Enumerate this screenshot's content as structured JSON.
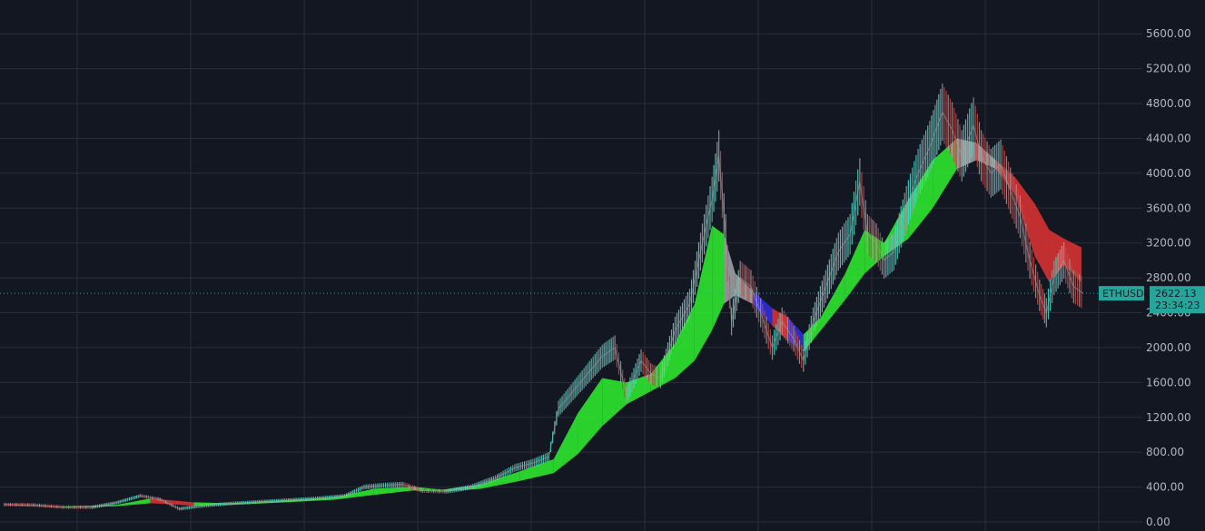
{
  "chart_data": {
    "type": "area",
    "symbol_label": "ETHUSD",
    "last_price_label": "2622.13",
    "countdown_label": "23:34:23",
    "last_price": 2622.13,
    "ylim": [
      0,
      5800
    ],
    "y_ticks": [
      0,
      400,
      800,
      1200,
      1600,
      2000,
      2400,
      2800,
      3200,
      3600,
      4000,
      4400,
      4800,
      5200,
      5600
    ],
    "y_tick_labels": [
      "0.00",
      "400.00",
      "800.00",
      "1200.00",
      "1600.00",
      "2000.00",
      "2400.00",
      "2800.00",
      "3200.00",
      "3600.00",
      "4000.00",
      "4400.00",
      "4800.00",
      "5200.00",
      "5600.00"
    ],
    "grid": true,
    "colors": {
      "background": "#131722",
      "grid": "#2a2e39",
      "bull_band": "#2ee62e",
      "bear_band": "#d63232",
      "weak_bear_band": "#2e2ee0",
      "price_up": "#40e0d0",
      "price_neutral": "#9e9e9e",
      "price_down": "#c24a4a",
      "price_line": "#26a69a"
    },
    "price_series": [
      {
        "x": 0,
        "y": 200
      },
      {
        "x": 30,
        "y": 195
      },
      {
        "x": 60,
        "y": 170
      },
      {
        "x": 90,
        "y": 168
      },
      {
        "x": 115,
        "y": 220
      },
      {
        "x": 140,
        "y": 300
      },
      {
        "x": 160,
        "y": 260
      },
      {
        "x": 180,
        "y": 150
      },
      {
        "x": 200,
        "y": 180
      },
      {
        "x": 230,
        "y": 210
      },
      {
        "x": 260,
        "y": 230
      },
      {
        "x": 290,
        "y": 250
      },
      {
        "x": 320,
        "y": 270
      },
      {
        "x": 350,
        "y": 300
      },
      {
        "x": 370,
        "y": 400
      },
      {
        "x": 390,
        "y": 420
      },
      {
        "x": 410,
        "y": 430
      },
      {
        "x": 430,
        "y": 360
      },
      {
        "x": 455,
        "y": 350
      },
      {
        "x": 480,
        "y": 400
      },
      {
        "x": 505,
        "y": 500
      },
      {
        "x": 525,
        "y": 620
      },
      {
        "x": 545,
        "y": 680
      },
      {
        "x": 560,
        "y": 750
      },
      {
        "x": 570,
        "y": 1300
      },
      {
        "x": 585,
        "y": 1500
      },
      {
        "x": 600,
        "y": 1700
      },
      {
        "x": 615,
        "y": 1900
      },
      {
        "x": 628,
        "y": 2000
      },
      {
        "x": 640,
        "y": 1450
      },
      {
        "x": 655,
        "y": 1850
      },
      {
        "x": 665,
        "y": 1700
      },
      {
        "x": 675,
        "y": 1650
      },
      {
        "x": 690,
        "y": 2200
      },
      {
        "x": 705,
        "y": 2500
      },
      {
        "x": 718,
        "y": 3200
      },
      {
        "x": 728,
        "y": 3700
      },
      {
        "x": 735,
        "y": 4200
      },
      {
        "x": 742,
        "y": 3300
      },
      {
        "x": 748,
        "y": 2300
      },
      {
        "x": 757,
        "y": 2800
      },
      {
        "x": 768,
        "y": 2700
      },
      {
        "x": 778,
        "y": 2400
      },
      {
        "x": 790,
        "y": 2000
      },
      {
        "x": 800,
        "y": 2300
      },
      {
        "x": 812,
        "y": 2100
      },
      {
        "x": 822,
        "y": 1850
      },
      {
        "x": 832,
        "y": 2300
      },
      {
        "x": 845,
        "y": 2700
      },
      {
        "x": 858,
        "y": 3100
      },
      {
        "x": 870,
        "y": 3300
      },
      {
        "x": 880,
        "y": 3900
      },
      {
        "x": 888,
        "y": 3300
      },
      {
        "x": 897,
        "y": 3200
      },
      {
        "x": 905,
        "y": 3000
      },
      {
        "x": 915,
        "y": 3100
      },
      {
        "x": 928,
        "y": 3600
      },
      {
        "x": 940,
        "y": 4000
      },
      {
        "x": 952,
        "y": 4300
      },
      {
        "x": 965,
        "y": 4700
      },
      {
        "x": 975,
        "y": 4500
      },
      {
        "x": 985,
        "y": 4200
      },
      {
        "x": 997,
        "y": 4550
      },
      {
        "x": 1005,
        "y": 4200
      },
      {
        "x": 1015,
        "y": 4000
      },
      {
        "x": 1025,
        "y": 4100
      },
      {
        "x": 1035,
        "y": 3800
      },
      {
        "x": 1045,
        "y": 3500
      },
      {
        "x": 1055,
        "y": 3000
      },
      {
        "x": 1065,
        "y": 2600
      },
      {
        "x": 1072,
        "y": 2400
      },
      {
        "x": 1080,
        "y": 2800
      },
      {
        "x": 1090,
        "y": 3000
      },
      {
        "x": 1100,
        "y": 2700
      },
      {
        "x": 1110,
        "y": 2622
      }
    ],
    "band_series": [
      {
        "x": 0,
        "top": 205,
        "bottom": 190,
        "trend": "bear"
      },
      {
        "x": 60,
        "top": 175,
        "bottom": 165,
        "trend": "bear"
      },
      {
        "x": 115,
        "top": 195,
        "bottom": 180,
        "trend": "bull"
      },
      {
        "x": 150,
        "top": 270,
        "bottom": 215,
        "trend": "bull"
      },
      {
        "x": 175,
        "top": 245,
        "bottom": 200,
        "trend": "bear"
      },
      {
        "x": 195,
        "top": 225,
        "bottom": 185,
        "trend": "bear"
      },
      {
        "x": 230,
        "top": 215,
        "bottom": 195,
        "trend": "bull"
      },
      {
        "x": 290,
        "top": 250,
        "bottom": 225,
        "trend": "bull"
      },
      {
        "x": 340,
        "top": 285,
        "bottom": 255,
        "trend": "bull"
      },
      {
        "x": 380,
        "top": 380,
        "bottom": 310,
        "trend": "bull"
      },
      {
        "x": 420,
        "top": 405,
        "bottom": 360,
        "trend": "bull"
      },
      {
        "x": 450,
        "top": 370,
        "bottom": 350,
        "trend": "bull"
      },
      {
        "x": 490,
        "top": 430,
        "bottom": 380,
        "trend": "bull"
      },
      {
        "x": 530,
        "top": 580,
        "bottom": 470,
        "trend": "bull"
      },
      {
        "x": 565,
        "top": 720,
        "bottom": 560,
        "trend": "bull"
      },
      {
        "x": 590,
        "top": 1250,
        "bottom": 780,
        "trend": "bull"
      },
      {
        "x": 615,
        "top": 1650,
        "bottom": 1100,
        "trend": "bull"
      },
      {
        "x": 640,
        "top": 1600,
        "bottom": 1350,
        "trend": "bull"
      },
      {
        "x": 665,
        "top": 1700,
        "bottom": 1500,
        "trend": "bull"
      },
      {
        "x": 690,
        "top": 2050,
        "bottom": 1650,
        "trend": "bull"
      },
      {
        "x": 710,
        "top": 2500,
        "bottom": 1850,
        "trend": "bull"
      },
      {
        "x": 728,
        "top": 3400,
        "bottom": 2200,
        "trend": "bull"
      },
      {
        "x": 740,
        "top": 3300,
        "bottom": 2500,
        "trend": "bull"
      },
      {
        "x": 752,
        "top": 2850,
        "bottom": 2600,
        "trend": "neutral"
      },
      {
        "x": 770,
        "top": 2650,
        "bottom": 2500,
        "trend": "neutral"
      },
      {
        "x": 790,
        "top": 2450,
        "bottom": 2250,
        "trend": "weak_bear"
      },
      {
        "x": 806,
        "top": 2350,
        "bottom": 2080,
        "trend": "bear"
      },
      {
        "x": 822,
        "top": 2150,
        "bottom": 1950,
        "trend": "weak_bear"
      },
      {
        "x": 840,
        "top": 2350,
        "bottom": 2200,
        "trend": "bull"
      },
      {
        "x": 865,
        "top": 2850,
        "bottom": 2550,
        "trend": "bull"
      },
      {
        "x": 885,
        "top": 3350,
        "bottom": 2850,
        "trend": "bull"
      },
      {
        "x": 905,
        "top": 3200,
        "bottom": 3050,
        "trend": "bull"
      },
      {
        "x": 930,
        "top": 3700,
        "bottom": 3250,
        "trend": "bull"
      },
      {
        "x": 955,
        "top": 4150,
        "bottom": 3600,
        "trend": "bull"
      },
      {
        "x": 980,
        "top": 4400,
        "bottom": 4050,
        "trend": "bull"
      },
      {
        "x": 1000,
        "top": 4350,
        "bottom": 4150,
        "trend": "neutral"
      },
      {
        "x": 1020,
        "top": 4150,
        "bottom": 4050,
        "trend": "neutral"
      },
      {
        "x": 1040,
        "top": 3950,
        "bottom": 3750,
        "trend": "bear"
      },
      {
        "x": 1060,
        "top": 3650,
        "bottom": 3050,
        "trend": "bear"
      },
      {
        "x": 1075,
        "top": 3350,
        "bottom": 2750,
        "trend": "bear"
      },
      {
        "x": 1090,
        "top": 3250,
        "bottom": 2950,
        "trend": "bear"
      },
      {
        "x": 1108,
        "top": 3150,
        "bottom": 2750,
        "trend": "bear"
      }
    ]
  }
}
